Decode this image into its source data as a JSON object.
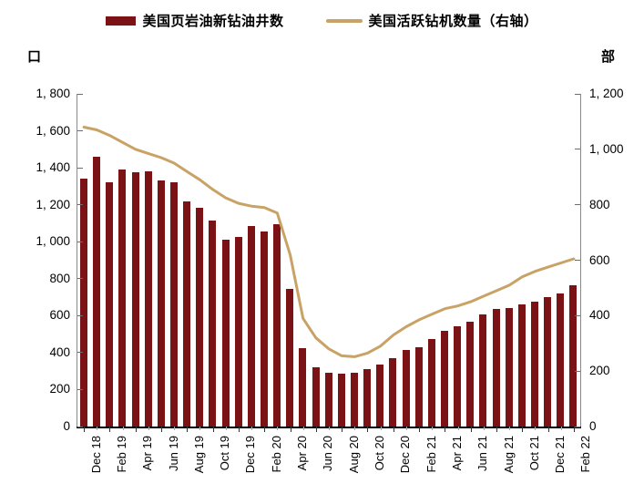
{
  "legend": [
    {
      "label": "美国页岩油新钻油井数",
      "swatch": "bar-swatch",
      "color": "#7B1215"
    },
    {
      "label": "美国活跃钻机数量（右轴）",
      "swatch": "line-swatch",
      "color": "#C9A265"
    }
  ],
  "left_axis": {
    "unit": "口",
    "max": 1800,
    "tick_labels": [
      "1, 800",
      "1, 600",
      "1, 400",
      "1, 200",
      "1, 000",
      "800",
      "600",
      "400",
      "200",
      "0"
    ]
  },
  "right_axis": {
    "unit": "部",
    "max": 1200,
    "tick_labels": [
      "1, 200",
      "1, 000",
      "800",
      "600",
      "400",
      "200",
      "0"
    ]
  },
  "chart_data": {
    "type": "bar+line",
    "x": [
      "Dec 18",
      "Jan 19",
      "Feb 19",
      "Mar 19",
      "Apr 19",
      "May 19",
      "Jun 19",
      "Jul 19",
      "Aug 19",
      "Sep 19",
      "Oct 19",
      "Nov 19",
      "Dec 19",
      "Jan 20",
      "Feb 20",
      "Mar 20",
      "Apr 20",
      "May 20",
      "Jun 20",
      "Jul 20",
      "Aug 20",
      "Sep 20",
      "Oct 20",
      "Nov 20",
      "Dec 20",
      "Jan 21",
      "Feb 21",
      "Mar 21",
      "Apr 21",
      "May 21",
      "Jun 21",
      "Jul 21",
      "Aug 21",
      "Sep 21",
      "Oct 21",
      "Nov 21",
      "Dec 21",
      "Jan 22",
      "Feb 22"
    ],
    "x_tick_label_every": 2,
    "grid": "off",
    "legend_position": "top-center",
    "series": [
      {
        "name": "美国页岩油新钻油井数",
        "type": "bar",
        "axis": "left",
        "ylim": [
          0,
          1800
        ],
        "color": "#7B1215",
        "values": [
          1340,
          1460,
          1320,
          1390,
          1375,
          1380,
          1330,
          1320,
          1220,
          1185,
          1115,
          1010,
          1025,
          1085,
          1055,
          1095,
          745,
          425,
          320,
          290,
          285,
          290,
          310,
          335,
          370,
          415,
          430,
          475,
          520,
          545,
          565,
          605,
          635,
          640,
          660,
          675,
          700,
          720,
          765
        ]
      },
      {
        "name": "美国活跃钻机数量（右轴）",
        "type": "line",
        "axis": "right",
        "ylim": [
          0,
          1200
        ],
        "color": "#C9A265",
        "values": [
          1080,
          1070,
          1050,
          1025,
          1000,
          985,
          970,
          950,
          920,
          890,
          855,
          825,
          805,
          795,
          790,
          770,
          620,
          390,
          320,
          280,
          255,
          252,
          265,
          290,
          330,
          360,
          385,
          405,
          425,
          435,
          450,
          470,
          490,
          510,
          540,
          560,
          575,
          590,
          605
        ]
      }
    ]
  }
}
